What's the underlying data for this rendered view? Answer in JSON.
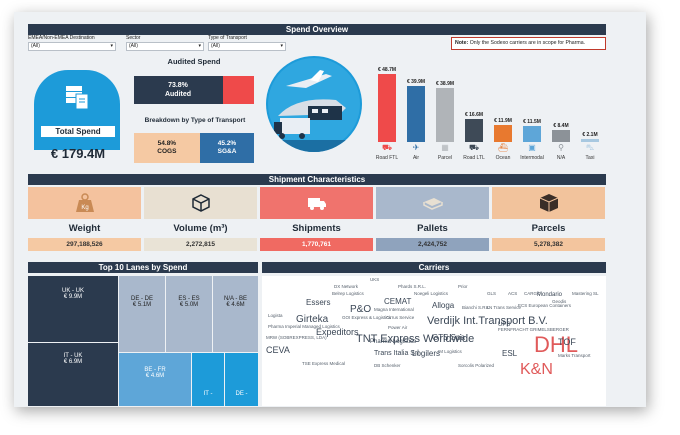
{
  "header": {
    "title": "Spend Overview"
  },
  "filters": [
    {
      "label": "EMEA/Non-EMEA Destination",
      "value": "(All)"
    },
    {
      "label": "Sector",
      "value": "(All)"
    },
    {
      "label": "Type of Transport",
      "value": "(All)"
    }
  ],
  "note": {
    "bold": "Note:",
    "text": "Only the Sodexo carriers are in scope for Pharma."
  },
  "audited": {
    "title": "Audited Spend",
    "percent": "73.8%",
    "label": "Audited",
    "fraction": 0.738
  },
  "total_spend": {
    "label": "Total Spend",
    "value": "€ 179.4M"
  },
  "breakdown": {
    "title": "Breakdown by Type of Transport",
    "cogs_pct": "54.8%",
    "cogs_label": "COGS",
    "sga_pct": "45.2%",
    "sga_label": "SG&A",
    "cogs_fraction": 0.548
  },
  "chart_data": {
    "type": "bar",
    "categories": [
      "Road FTL",
      "Air",
      "Parcel",
      "Road LTL",
      "Ocean",
      "Intermodal",
      "N/A",
      "Taxi"
    ],
    "values": [
      48.7,
      39.9,
      38.9,
      16.6,
      11.9,
      11.5,
      8.4,
      2.1
    ],
    "data_labels": [
      "€ 48.7M",
      "€ 39.9M",
      "€ 38.9M",
      "€ 16.6M",
      "€ 11.9M",
      "€ 11.5M",
      "€ 8.4M",
      "€ 2.1M"
    ],
    "colors": [
      "#ef4a4a",
      "#2f6ea6",
      "#b0b4b8",
      "#3e4a57",
      "#e8792f",
      "#5ea6d8",
      "#8c9298",
      "#a8c8e0"
    ],
    "icons": [
      "truck-icon",
      "plane-icon",
      "box-icon",
      "truck-icon",
      "ship-icon",
      "train-icon",
      "pin-icon",
      "car-icon"
    ]
  },
  "shipment": {
    "title": "Shipment Characteristics",
    "kpis": [
      {
        "label": "Weight",
        "value": "297,188,526",
        "icon": "kg-weight-icon",
        "color": "#f4c29e"
      },
      {
        "label": "Volume (m³)",
        "value": "2,272,815",
        "icon": "cube-icon",
        "color": "#e8e0d2"
      },
      {
        "label": "Shipments",
        "value": "1,770,761",
        "icon": "truck-icon",
        "color": "#f0736d"
      },
      {
        "label": "Pallets",
        "value": "2,424,752",
        "icon": "pallet-icon",
        "color": "#a9b8cc"
      },
      {
        "label": "Parcels",
        "value": "5,278,382",
        "icon": "parcel-icon",
        "color": "#f2c39c"
      }
    ],
    "value_colors": [
      "#f5c9a3",
      "#e9e3d6",
      "#f06a62",
      "#8fa3bd",
      "#f3c59e"
    ]
  },
  "lanes": {
    "title": "Top 10 Lanes by Spend",
    "items": [
      {
        "name": "UK - UK",
        "value": "€ 9.9M"
      },
      {
        "name": "IT - UK",
        "value": "€ 6.9M"
      },
      {
        "name": "DE - DE",
        "value": "€ 5.1M"
      },
      {
        "name": "ES - ES",
        "value": "€ 5.0M"
      },
      {
        "name": "N/A - BE",
        "value": "€ 4.6M"
      },
      {
        "name": "BE - FR",
        "value": "€ 4.6M"
      },
      {
        "name": "IT -",
        "value": ""
      },
      {
        "name": "DE -",
        "value": ""
      }
    ]
  },
  "carriers": {
    "title": "Carriers",
    "words": [
      "UKS",
      "DX Network",
      "Phards S.R.L.",
      "Prior",
      "Noegeli Logistics",
      "GLS",
      "ACS",
      "CARGO",
      "Mondario",
      "Mastering SL",
      "Belrep Logistics",
      "Essers",
      "CEMAT",
      "Magna International",
      "P&O",
      "Alloga",
      "Bianchi S.R.L.",
      "KN Trans Service",
      "ECS European Containers",
      "Logista",
      "Girteka",
      "GOI Express & Logistics",
      "Cirrus Service",
      "Verdijk Int.Transport B.V.",
      "Pharma Imperial Managed Logistics",
      "Power Air",
      "Expeditors",
      "TNT Express Worldwide",
      "UPS",
      "DHL",
      "Marks Transport",
      "MRW (SOBREXPRESS, LDA)",
      "Pharma Logistics",
      "GTS Spa",
      "CEVA",
      "Trans Italia Srl",
      "Logilers",
      "IM Logistics",
      "ESL",
      "DB Schenker",
      "TSE Express Medical",
      "Sorcolis Polarized",
      "K&N",
      "TOF",
      "FERNFRACHT GRIMELSBERGER",
      "Geodis"
    ]
  }
}
